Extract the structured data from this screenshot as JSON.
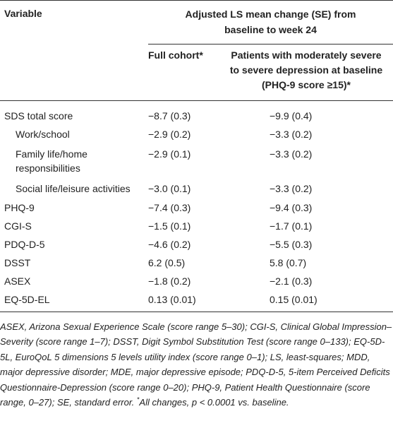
{
  "header": {
    "variable": "Variable",
    "group_title_line1": "Adjusted LS mean change (SE) from",
    "group_title_line2": "baseline to week 24",
    "col_full": "Full cohort*",
    "col_severe_line1": "Patients with moderately severe",
    "col_severe_line2": "to severe depression at baseline",
    "col_severe_line3": "(PHQ-9 score ≥15)*"
  },
  "rows": [
    {
      "label": "SDS total score",
      "full": "−8.7 (0.3)",
      "severe": "−9.9 (0.4)"
    },
    {
      "label": "Work/school",
      "full": "−2.9 (0.2)",
      "severe": "−3.3 (0.2)"
    },
    {
      "label": "Family life/home",
      "label2": "responsibilities",
      "full": "−2.9 (0.1)",
      "severe": "−3.3 (0.2)"
    },
    {
      "label": "Social life/leisure activities",
      "full": "−3.0 (0.1)",
      "severe": "−3.3 (0.2)"
    },
    {
      "label": "PHQ-9",
      "full": "−7.4 (0.3)",
      "severe": "−9.4 (0.3)"
    },
    {
      "label": "CGI-S",
      "full": "−1.5 (0.1)",
      "severe": "−1.7 (0.1)"
    },
    {
      "label": "PDQ-D-5",
      "full": "−4.6 (0.2)",
      "severe": "−5.5 (0.3)"
    },
    {
      "label": "DSST",
      "full": "6.2 (0.5)",
      "severe": "5.8 (0.7)"
    },
    {
      "label": "ASEX",
      "full": "−1.8 (0.2)",
      "severe": "−2.1 (0.3)"
    },
    {
      "label": "EQ-5D-EL",
      "full": "0.13 (0.01)",
      "severe": "0.15 (0.01)"
    }
  ],
  "footnote": {
    "text": "ASEX, Arizona Sexual Experience Scale (score range 5–30); CGI-S, Clinical Global Impression–Severity (score range 1–7); DSST, Digit Symbol Substitution Test (score range 0–133); EQ-5D-5L, EuroQoL 5 dimensions 5 levels utility index (score range 0–1); LS, least-squares; MDD, major depressive disorder; MDE, major depressive episode; PDQ-D-5, 5-item Perceived Deficits Questionnaire-Depression (score range 0–20); PHQ-9, Patient Health Questionnaire (score range, 0–27); SE, standard error. ",
    "star": "*",
    "tail": "All changes, p < 0.0001 vs. baseline."
  }
}
